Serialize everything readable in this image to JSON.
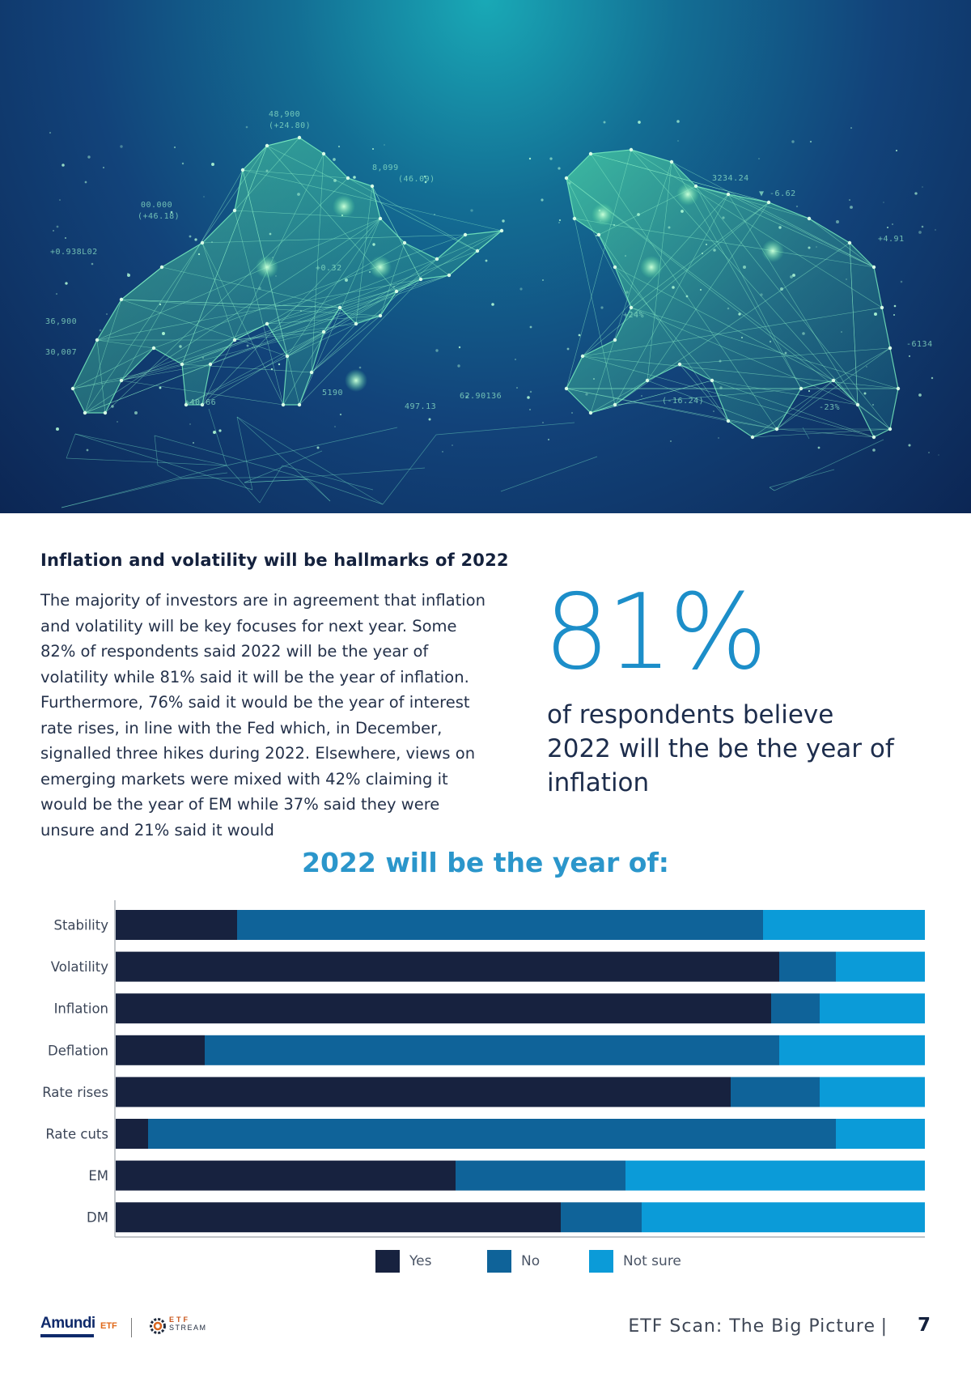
{
  "hero": {
    "image_description": "bull-and-bear-network-illustration",
    "numbers": [
      "48,900",
      "(+24.80)",
      "00.000",
      "(+46.18)",
      "+0.938L02",
      "+0.32",
      "36,900",
      "30,007",
      "8,099",
      "(46.09)",
      "+40.66",
      "5190",
      "497.13",
      "62.90136",
      "3234.24",
      "▼ -6.62",
      "+4.91",
      "(-16.24)",
      "-23%",
      "-6134",
      "+24%"
    ]
  },
  "article": {
    "heading": "Inflation and volatility will be hallmarks of 2022",
    "body": "The majority of investors are in agreement that inflation and volatility will be key focuses for next year. Some 82% of respondents said 2022 will be the year of volatility while 81% said it will be the year of inflation. Furthermore, 76% said it would be the year of interest rate rises, in line with the Fed which, in December, signalled three hikes during 2022. Elsewhere, views on emerging markets were mixed with 42% claiming it would be the year of EM while 37% said they were unsure and 21% said it would"
  },
  "stat": {
    "value": "81%",
    "caption": "of respondents believe 2022 will the be the year of inflation"
  },
  "chart_data": {
    "type": "bar",
    "orientation": "horizontal",
    "stacked": true,
    "title": "2022 will be the year of:",
    "categories": [
      "Stability",
      "Volatility",
      "Inflation",
      "Deflation",
      "Rate rises",
      "Rate cuts",
      "EM",
      "DM"
    ],
    "series": [
      {
        "name": "Yes",
        "color": "#17223f",
        "values": [
          15,
          82,
          81,
          11,
          76,
          4,
          42,
          55
        ]
      },
      {
        "name": "No",
        "color": "#0f6399",
        "values": [
          65,
          7,
          6,
          71,
          11,
          85,
          21,
          10
        ]
      },
      {
        "name": "Not sure",
        "color": "#0b9bd8",
        "values": [
          20,
          11,
          13,
          18,
          13,
          11,
          37,
          35
        ]
      }
    ],
    "xlim": [
      0,
      100
    ],
    "grid": false,
    "legend_position": "bottom"
  },
  "footer": {
    "logo_amundi": "Amundi",
    "logo_etf": "ETF",
    "logo_stream_top": "ETF",
    "logo_stream_bottom": "STREAM",
    "publication_title": "ETF Scan: The Big Picture",
    "separator": "|",
    "page_number": "7"
  }
}
